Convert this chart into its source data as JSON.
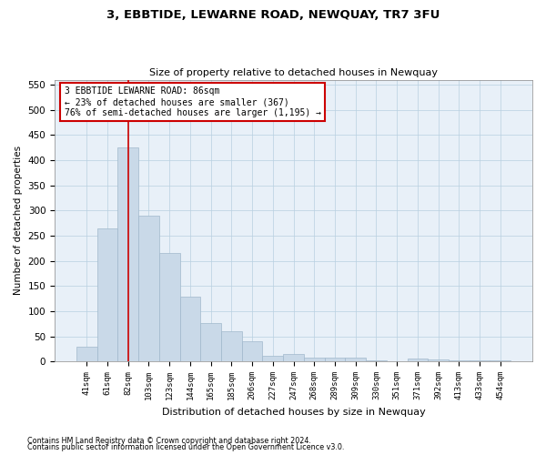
{
  "title": "3, EBBTIDE, LEWARNE ROAD, NEWQUAY, TR7 3FU",
  "subtitle": "Size of property relative to detached houses in Newquay",
  "xlabel": "Distribution of detached houses by size in Newquay",
  "ylabel": "Number of detached properties",
  "bar_color": "#c9d9e8",
  "bar_edge_color": "#a0b8cc",
  "grid_color": "#b8cfe0",
  "background_color": "#ffffff",
  "plot_bg_color": "#e8f0f8",
  "annotation_text": "3 EBBTIDE LEWARNE ROAD: 86sqm\n← 23% of detached houses are smaller (367)\n76% of semi-detached houses are larger (1,195) →",
  "annotation_box_color": "#ffffff",
  "annotation_box_edge_color": "#cc0000",
  "vline_color": "#cc0000",
  "vline_x_index": 2,
  "categories": [
    "41sqm",
    "61sqm",
    "82sqm",
    "103sqm",
    "123sqm",
    "144sqm",
    "165sqm",
    "185sqm",
    "206sqm",
    "227sqm",
    "247sqm",
    "268sqm",
    "289sqm",
    "309sqm",
    "330sqm",
    "351sqm",
    "371sqm",
    "392sqm",
    "413sqm",
    "433sqm",
    "454sqm"
  ],
  "values": [
    30,
    265,
    425,
    290,
    215,
    128,
    77,
    60,
    40,
    12,
    15,
    8,
    8,
    8,
    2,
    0,
    5,
    4,
    3,
    2,
    3
  ],
  "ylim": [
    0,
    560
  ],
  "yticks": [
    0,
    50,
    100,
    150,
    200,
    250,
    300,
    350,
    400,
    450,
    500,
    550
  ],
  "footnote1": "Contains HM Land Registry data © Crown copyright and database right 2024.",
  "footnote2": "Contains public sector information licensed under the Open Government Licence v3.0."
}
